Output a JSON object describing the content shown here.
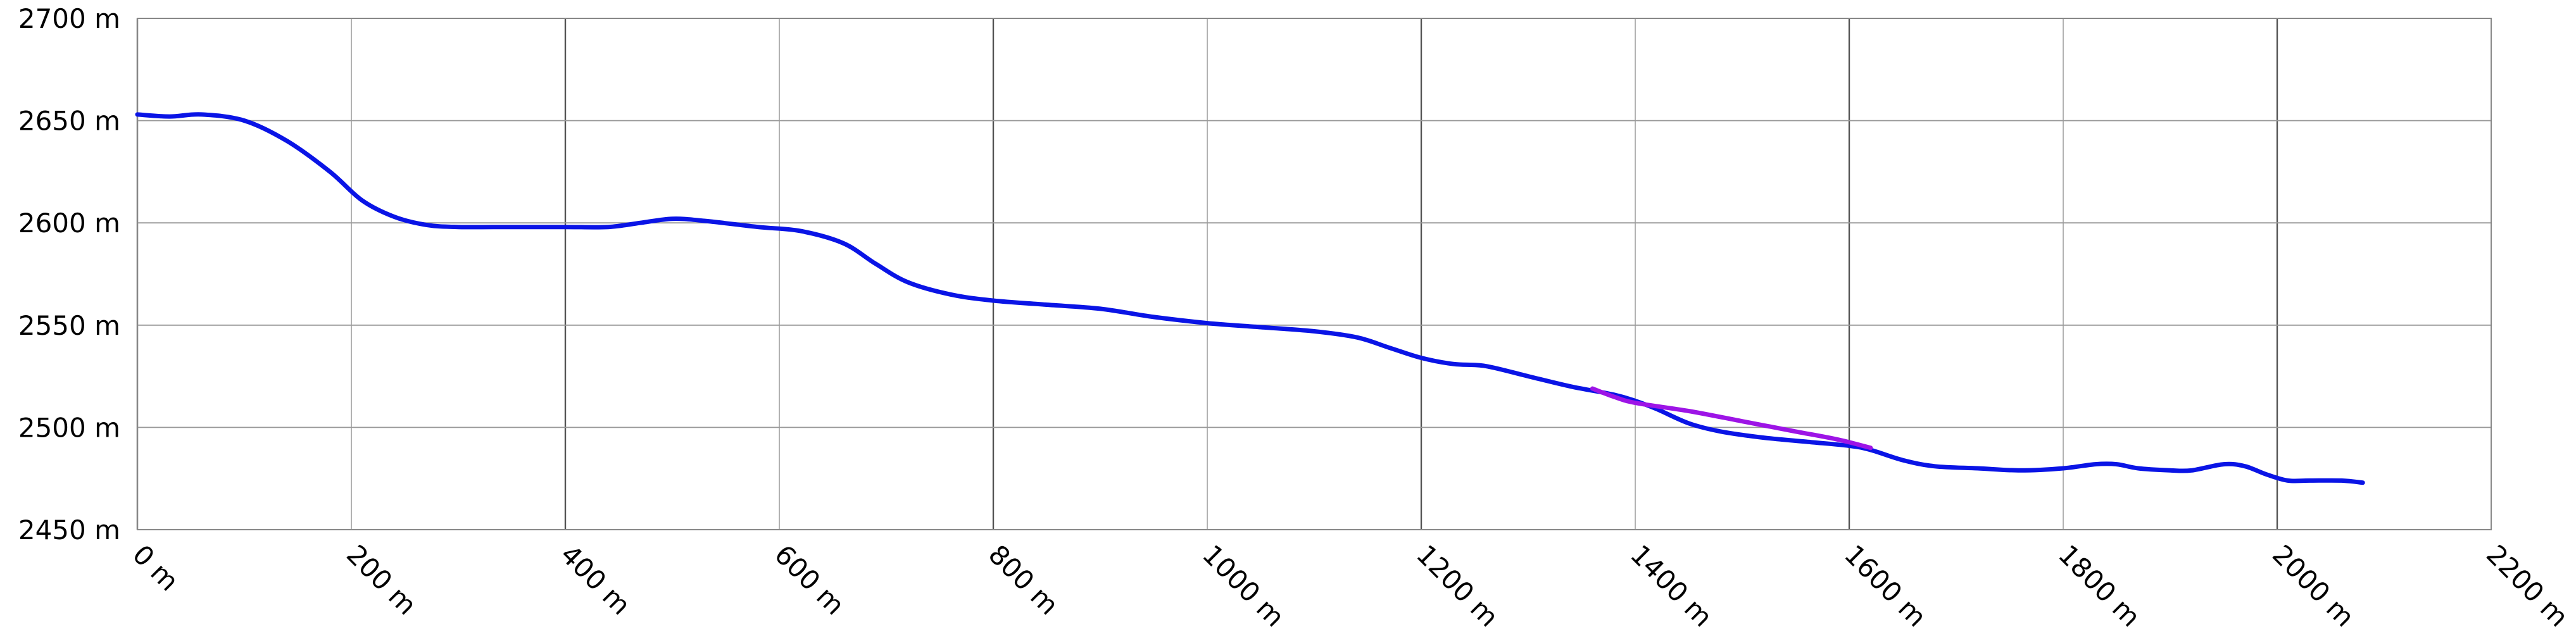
{
  "chart_data": {
    "type": "line",
    "title": "",
    "xlabel": "",
    "ylabel": "",
    "xlim": [
      0,
      2200
    ],
    "ylim": [
      2450,
      2700
    ],
    "x_ticks": [
      0,
      200,
      400,
      600,
      800,
      1000,
      1200,
      1400,
      1600,
      1800,
      2000,
      2200
    ],
    "x_tick_labels": [
      "0 m",
      "200 m",
      "400 m",
      "600 m",
      "800 m",
      "1000 m",
      "1200 m",
      "1400 m",
      "1600 m",
      "1800 m",
      "2000 m",
      "2200 m"
    ],
    "y_ticks": [
      2450,
      2500,
      2550,
      2600,
      2650,
      2700
    ],
    "y_tick_labels": [
      "2450 m",
      "2500 m",
      "2550 m",
      "2600 m",
      "2650 m",
      "2700 m"
    ],
    "grid": true,
    "legend": "none",
    "series": [
      {
        "color": "#0a14e6",
        "x": [
          0,
          30,
          60,
          100,
          140,
          180,
          210,
          240,
          270,
          300,
          350,
          400,
          440,
          470,
          500,
          530,
          580,
          620,
          660,
          690,
          720,
          760,
          800,
          850,
          900,
          950,
          1000,
          1050,
          1100,
          1140,
          1170,
          1200,
          1230,
          1260,
          1300,
          1340,
          1380,
          1400,
          1420,
          1450,
          1480,
          1520,
          1560,
          1600,
          1620,
          1650,
          1680,
          1720,
          1760,
          1800,
          1830,
          1850,
          1870,
          1900,
          1920,
          1950,
          1970,
          1990,
          2010,
          2030,
          2060,
          2080
        ],
        "y": [
          2653,
          2652,
          2653,
          2650,
          2640,
          2625,
          2611,
          2603,
          2599,
          2598,
          2598,
          2598,
          2598,
          2600,
          2602,
          2601,
          2598,
          2596,
          2590,
          2580,
          2571,
          2565,
          2562,
          2560,
          2558,
          2554,
          2551,
          2549,
          2547,
          2544,
          2539,
          2534,
          2531,
          2530,
          2525,
          2520,
          2516,
          2513,
          2509,
          2502,
          2498,
          2495,
          2493,
          2491,
          2489,
          2484,
          2481,
          2480,
          2479,
          2480,
          2482,
          2482,
          2480,
          2479,
          2479,
          2482,
          2481,
          2477,
          2474,
          2474,
          2474,
          2473
        ]
      },
      {
        "color": "#9d14e6",
        "x": [
          1360,
          1380,
          1400,
          1450,
          1500,
          1550,
          1590,
          1620
        ],
        "y": [
          2519,
          2515,
          2512,
          2508,
          2503,
          2498,
          2494,
          2490
        ]
      }
    ]
  }
}
